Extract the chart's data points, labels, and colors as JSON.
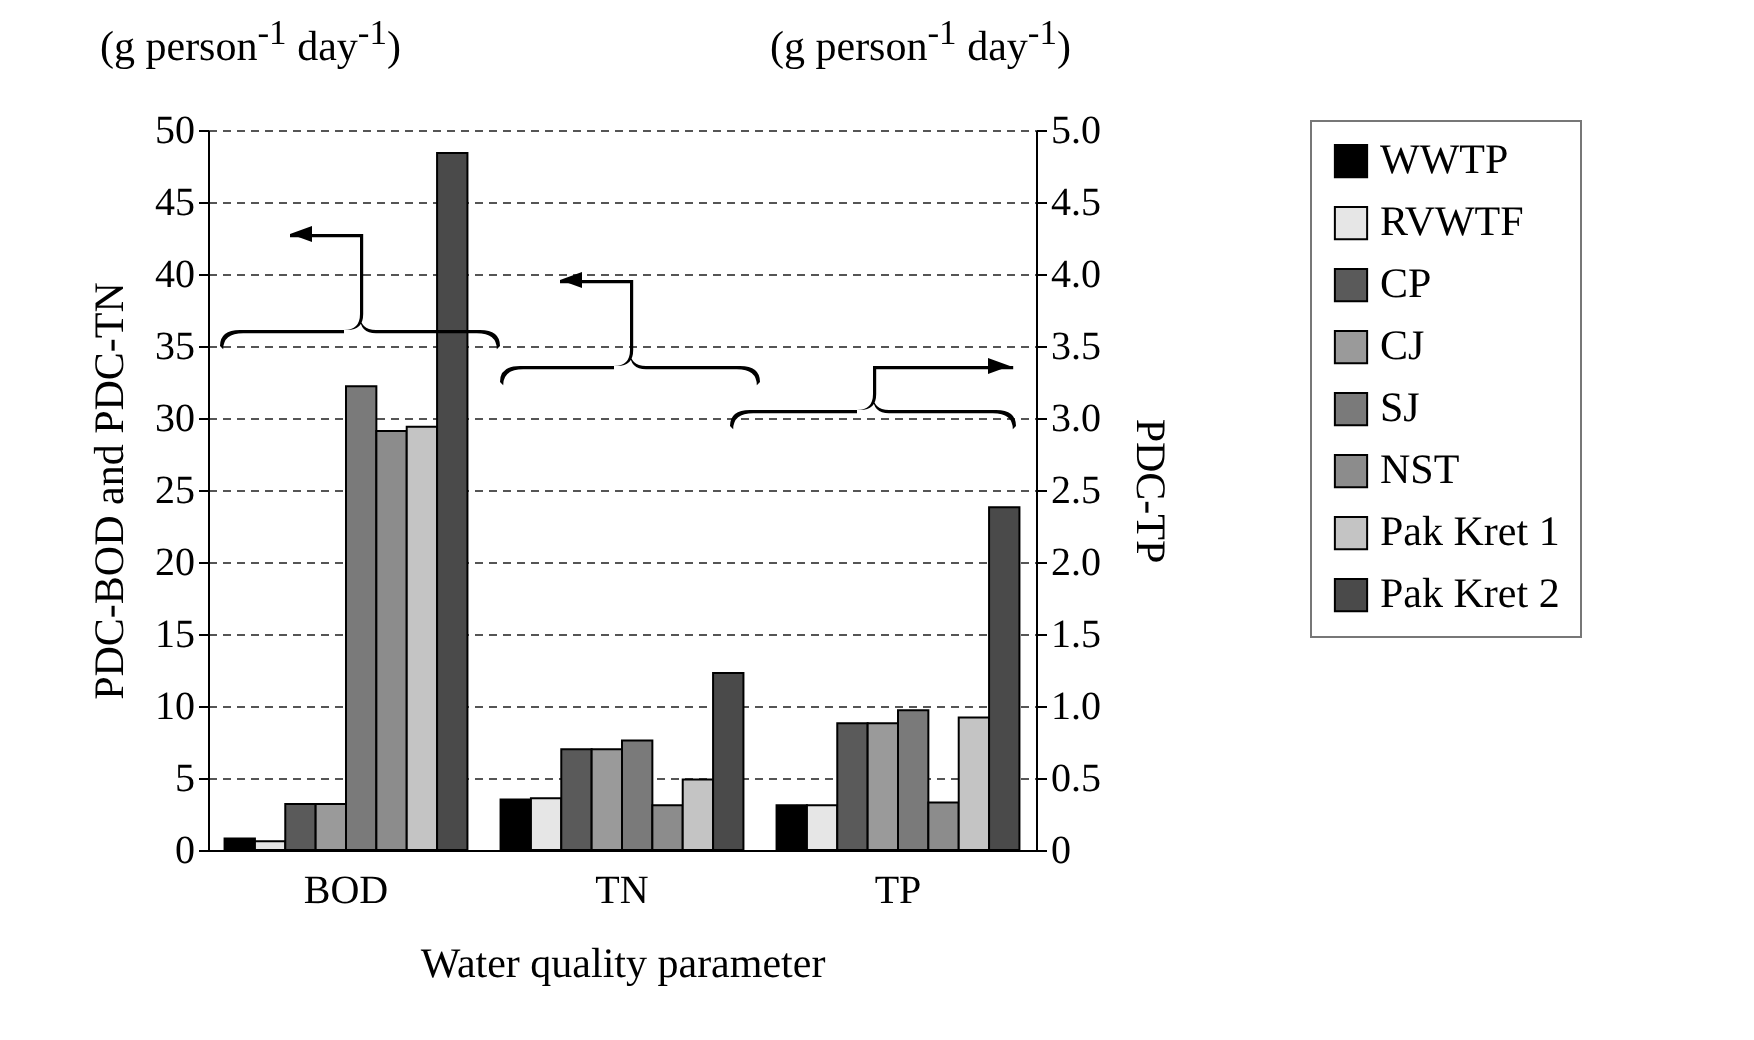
{
  "chart_data": {
    "type": "bar",
    "xlabel": "Water quality parameter",
    "ylabel": "PDC-BOD and PDC-TN",
    "y2label": "PDC-TP",
    "annotations": [
      "(g person$^{-1}$ day$^{-1}$)",
      "(g person$^{-1}$ day$^{-1}$)"
    ],
    "categories": [
      "BOD",
      "TN",
      "TP"
    ],
    "series": [
      {
        "name": "WWTP",
        "color": "#000000",
        "values": [
          0.8,
          3.5,
          null
        ]
      },
      {
        "name": "RVWTF",
        "color": "#e6e6e6",
        "values": [
          0.6,
          3.6,
          null
        ]
      },
      {
        "name": "CP",
        "color": "#5a5a5a",
        "values": [
          3.2,
          7.0,
          null
        ]
      },
      {
        "name": "CJ",
        "color": "#9a9a9a",
        "values": [
          3.2,
          7.0,
          null
        ]
      },
      {
        "name": "SJ",
        "color": "#7a7a7a",
        "values": [
          32.2,
          7.6,
          null
        ]
      },
      {
        "name": "NST",
        "color": "#8c8c8c",
        "values": [
          29.1,
          3.1,
          null
        ]
      },
      {
        "name": "Pak Kret 1",
        "color": "#c4c4c4",
        "values": [
          29.4,
          4.9,
          null
        ]
      },
      {
        "name": "Pak Kret 2",
        "color": "#4a4a4a",
        "values": [
          48.4,
          12.3,
          null
        ]
      },
      {
        "color": "#000000",
        "axis": "y2",
        "values": [
          null,
          null,
          0.31
        ]
      },
      {
        "color": "#e6e6e6",
        "axis": "y2",
        "values": [
          null,
          null,
          0.31
        ]
      },
      {
        "color": "#5a5a5a",
        "axis": "y2",
        "values": [
          null,
          null,
          0.88
        ]
      },
      {
        "color": "#9a9a9a",
        "axis": "y2",
        "values": [
          null,
          null,
          0.88
        ]
      },
      {
        "color": "#7a7a7a",
        "axis": "y2",
        "values": [
          null,
          null,
          0.97
        ]
      },
      {
        "color": "#8c8c8c",
        "axis": "y2",
        "values": [
          null,
          null,
          0.33
        ]
      },
      {
        "color": "#c4c4c4",
        "axis": "y2",
        "values": [
          null,
          null,
          0.92
        ]
      },
      {
        "color": "#4a4a4a",
        "axis": "y2",
        "values": [
          null,
          null,
          2.38
        ]
      }
    ],
    "ylim": [
      0,
      50
    ],
    "yticks": [
      0,
      5,
      10,
      15,
      20,
      25,
      30,
      35,
      40,
      45,
      50
    ],
    "y2lim": [
      0,
      5
    ],
    "y2ticks": [
      0,
      0.5,
      {
        "value": 1,
        "label": "1.0"
      },
      1.5,
      {
        "value": 2,
        "label": "2.0"
      },
      2.5,
      {
        "value": 3,
        "label": "3.0"
      },
      3.5,
      {
        "value": 4,
        "label": "4.0"
      },
      4.5,
      {
        "value": 5,
        "label": "5.0"
      }
    ],
    "grid": "y",
    "legend": "right"
  }
}
